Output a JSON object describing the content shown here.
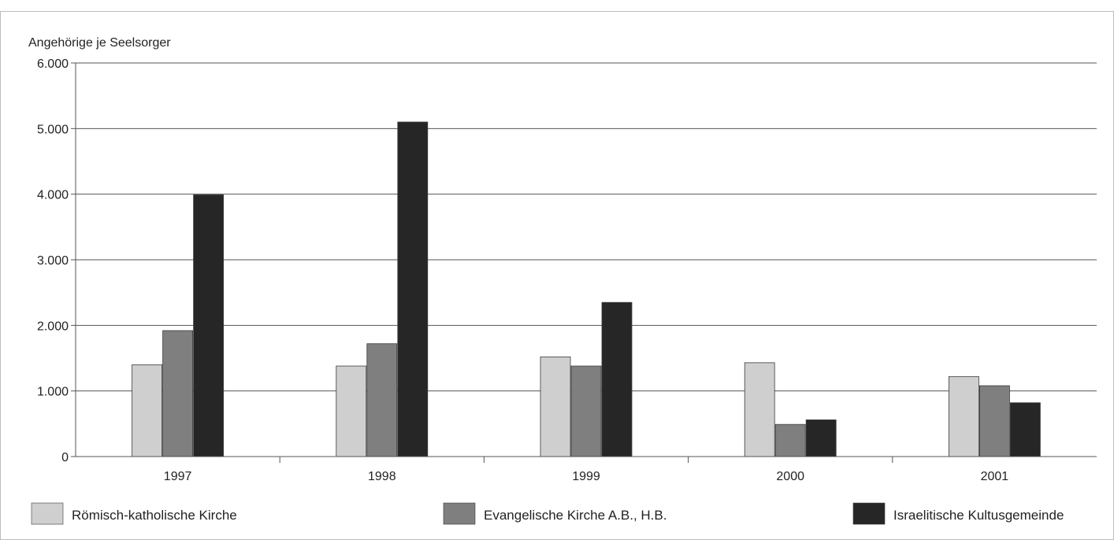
{
  "chart_data": {
    "type": "bar",
    "ylabel": "Angehörige je Seelsorger",
    "xlabel": "",
    "title": "",
    "categories": [
      "1997",
      "1998",
      "1999",
      "2000",
      "2001"
    ],
    "series": [
      {
        "name": "Römisch-katholische Kirche",
        "color": "#cfcfcf",
        "values": [
          1400,
          1380,
          1520,
          1430,
          1220
        ]
      },
      {
        "name": "Evangelische Kirche A.B., H.B.",
        "color": "#7f7f7f",
        "values": [
          1920,
          1720,
          1380,
          490,
          1080
        ]
      },
      {
        "name": "Israelitische Kultusgemeinde",
        "color": "#262626",
        "values": [
          3990,
          5100,
          2350,
          560,
          820
        ]
      }
    ],
    "ylim": [
      0,
      6000
    ],
    "yticks": [
      0,
      1000,
      2000,
      3000,
      4000,
      5000,
      6000
    ],
    "ytick_labels": [
      "0",
      "1.000",
      "2.000",
      "3.000",
      "4.000",
      "5.000",
      "6.000"
    ],
    "grid": true,
    "legend_position": "bottom"
  }
}
